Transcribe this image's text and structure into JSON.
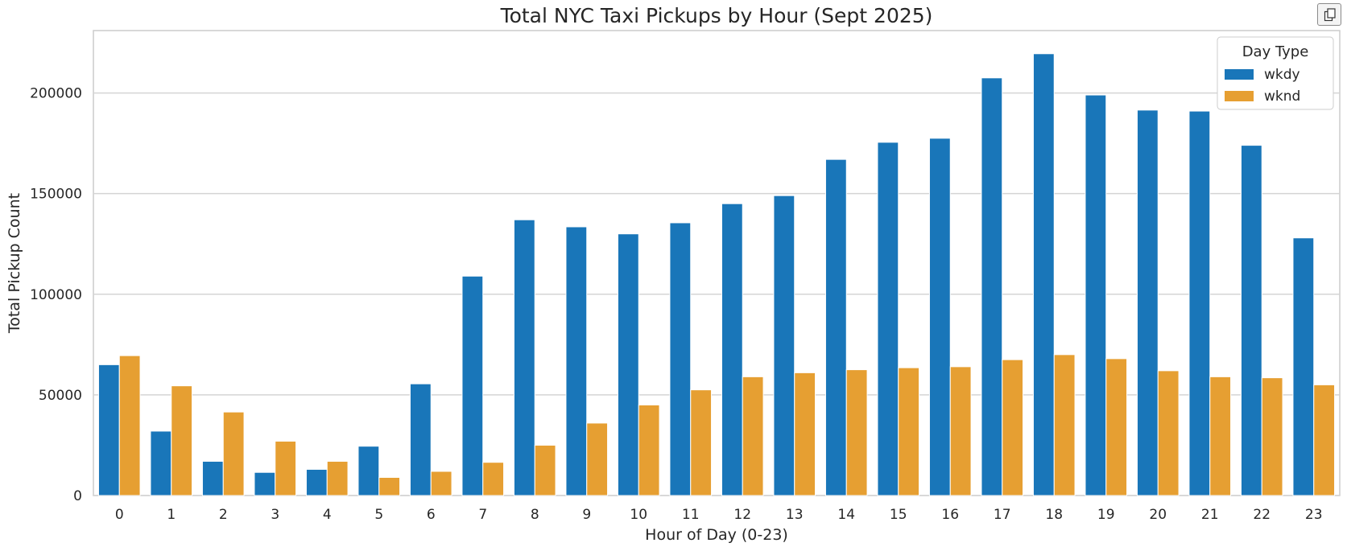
{
  "chart_data": {
    "type": "bar",
    "title": "Total NYC Taxi Pickups by Hour (Sept 2025)",
    "xlabel": "Hour of Day (0-23)",
    "ylabel": "Total Pickup Count",
    "categories": [
      "0",
      "1",
      "2",
      "3",
      "4",
      "5",
      "6",
      "7",
      "8",
      "9",
      "10",
      "11",
      "12",
      "13",
      "14",
      "15",
      "16",
      "17",
      "18",
      "19",
      "20",
      "21",
      "22",
      "23"
    ],
    "series": [
      {
        "name": "wkdy",
        "color": "#1976b9",
        "values": [
          65000,
          32000,
          17000,
          11500,
          13000,
          24500,
          55500,
          109000,
          137000,
          133500,
          130000,
          135500,
          145000,
          149000,
          167000,
          175500,
          177500,
          207500,
          219500,
          199000,
          191500,
          191000,
          174000,
          128000
        ]
      },
      {
        "name": "wknd",
        "color": "#e69f32",
        "values": [
          69500,
          54500,
          41500,
          27000,
          17000,
          9000,
          12000,
          16500,
          25000,
          36000,
          45000,
          52500,
          59000,
          61000,
          62500,
          63500,
          64000,
          67500,
          70000,
          68000,
          62000,
          59000,
          58500,
          55000
        ]
      }
    ],
    "ylim": [
      0,
      231000
    ],
    "yticks": [
      "0",
      "50000",
      "100000",
      "150000",
      "200000"
    ],
    "grid": "horizontal",
    "legend": {
      "title": "Day Type",
      "placement": "top-right"
    }
  },
  "toolbar": {
    "copy_icon": "copy-icon"
  }
}
